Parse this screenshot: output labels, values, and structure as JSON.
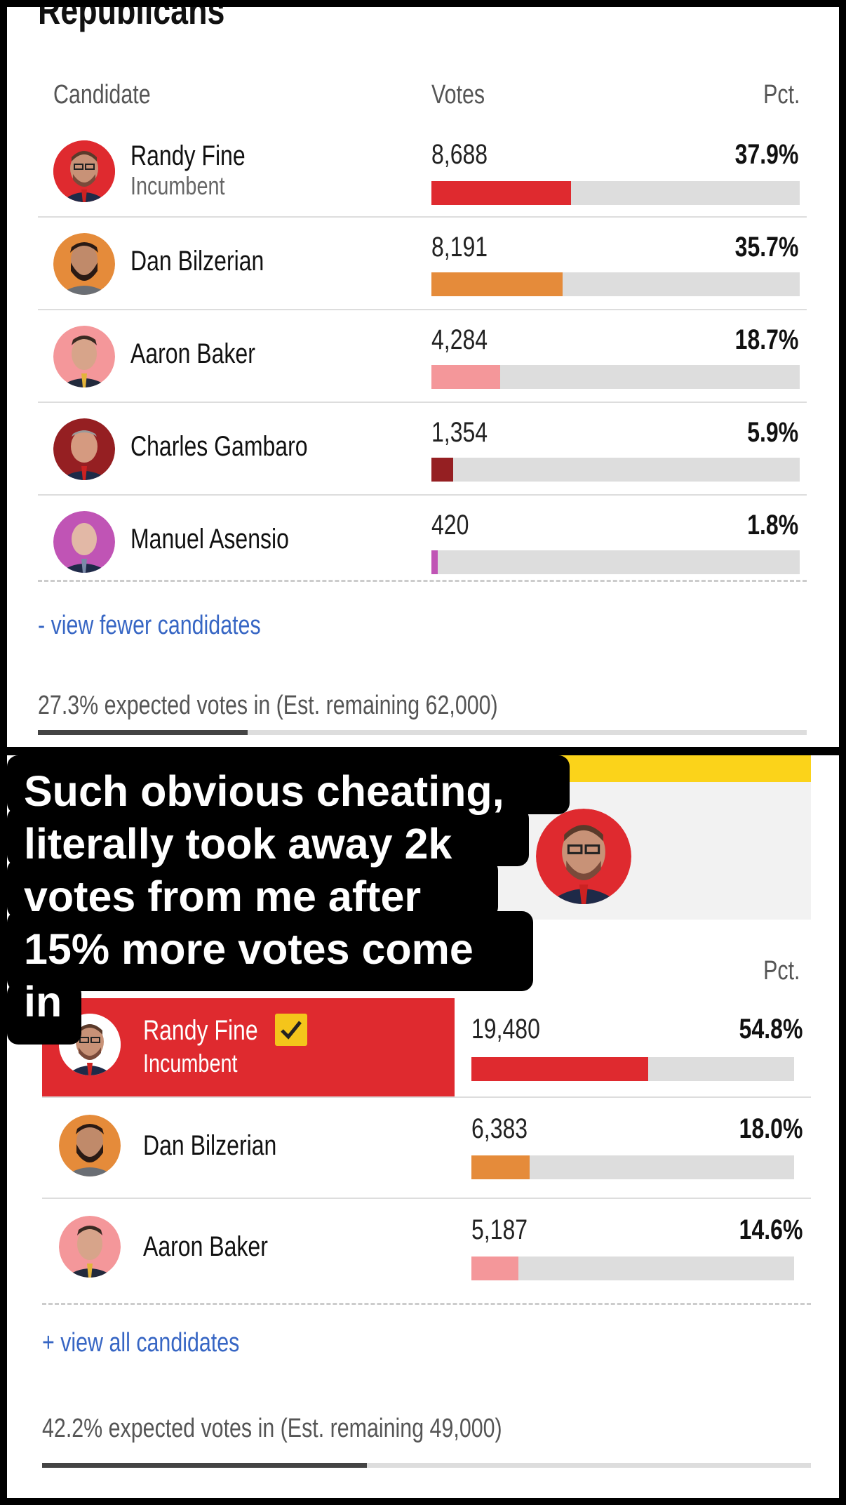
{
  "colors": {
    "randy": "#df2a2f",
    "dan": "#e58b3a",
    "aaron": "#f4979a",
    "charles": "#951f22",
    "manuel": "#c054b5",
    "link": "#3766c4",
    "yellow": "#fbd31a"
  },
  "top": {
    "section_title": "Republicans",
    "headers": {
      "candidate": "Candidate",
      "votes": "Votes",
      "pct": "Pct."
    },
    "candidates": [
      {
        "name": "Randy Fine",
        "sub": "Incumbent",
        "votes": "8,688",
        "pct": "37.9%",
        "share": 0.379,
        "color": "#df2a2f"
      },
      {
        "name": "Dan Bilzerian",
        "sub": "",
        "votes": "8,191",
        "pct": "35.7%",
        "share": 0.357,
        "color": "#e58b3a"
      },
      {
        "name": "Aaron Baker",
        "sub": "",
        "votes": "4,284",
        "pct": "18.7%",
        "share": 0.187,
        "color": "#f4979a"
      },
      {
        "name": "Charles Gambaro",
        "sub": "",
        "votes": "1,354",
        "pct": "5.9%",
        "share": 0.059,
        "color": "#951f22"
      },
      {
        "name": "Manuel Asensio",
        "sub": "",
        "votes": "420",
        "pct": "1.8%",
        "share": 0.018,
        "color": "#c054b5"
      }
    ],
    "toggle_link": "- view fewer candidates",
    "expected_text": "27.3% expected votes in (Est. remaining 62,000)",
    "expected_share": 0.273
  },
  "bottom": {
    "headers": {
      "pct": "Pct."
    },
    "candidates": [
      {
        "name": "Randy Fine",
        "sub": "Incumbent",
        "votes": "19,480",
        "pct": "54.8%",
        "share": 0.548,
        "color": "#df2a2f",
        "winner": true
      },
      {
        "name": "Dan Bilzerian",
        "sub": "",
        "votes": "6,383",
        "pct": "18.0%",
        "share": 0.18,
        "color": "#e58b3a"
      },
      {
        "name": "Aaron Baker",
        "sub": "",
        "votes": "5,187",
        "pct": "14.6%",
        "share": 0.146,
        "color": "#f4979a"
      }
    ],
    "toggle_link": "+ view all candidates",
    "expected_text": "42.2% expected votes in (Est. remaining 49,000)",
    "expected_share": 0.422
  },
  "caption": {
    "lines": [
      "Such obvious cheating,",
      "literally took away 2k",
      "votes from me after",
      "15% more votes come",
      "in"
    ]
  }
}
